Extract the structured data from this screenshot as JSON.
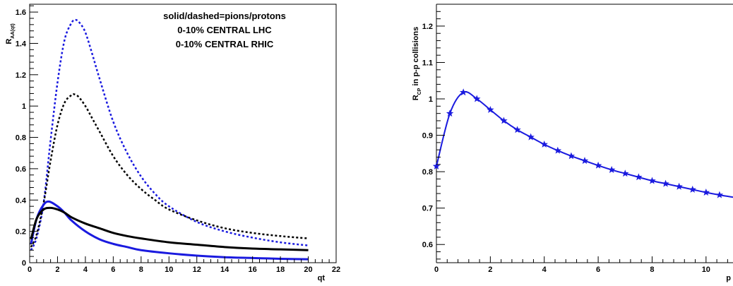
{
  "chart_data": [
    {
      "type": "line",
      "title": "",
      "xlabel": "qt",
      "ylabel": "R_{AA(qt)}",
      "xlim": [
        0,
        22
      ],
      "ylim": [
        0,
        1.65
      ],
      "grid": false,
      "xticks": [
        "0",
        "2",
        "4",
        "6",
        "8",
        "10",
        "12",
        "14",
        "16",
        "18",
        "20",
        "22"
      ],
      "yticks": [
        "0",
        "0.2",
        "0.4",
        "0.6",
        "0.8",
        "1",
        "1.2",
        "1.4",
        "1.6"
      ],
      "legend": {
        "placement": "top-right",
        "lines": [
          {
            "text": "solid/dashed=pions/protons",
            "color": "#000000"
          },
          {
            "text": "0-10% CENTRAL LHC",
            "color": "#1a1adf"
          },
          {
            "text": "0-10% CENTRAL RHIC",
            "color": "#000000"
          }
        ]
      },
      "series": [
        {
          "color": "#1a1adf",
          "style": "dashed",
          "x": [
            0.1,
            0.5,
            1,
            1.5,
            2,
            2.5,
            3,
            3.3,
            3.6,
            4,
            4.5,
            5,
            6,
            7,
            8,
            9,
            10,
            12,
            14,
            16,
            18,
            20
          ],
          "y": [
            0.08,
            0.16,
            0.38,
            0.78,
            1.15,
            1.42,
            1.53,
            1.55,
            1.53,
            1.47,
            1.33,
            1.18,
            0.9,
            0.7,
            0.55,
            0.44,
            0.36,
            0.26,
            0.2,
            0.16,
            0.13,
            0.11
          ]
        },
        {
          "color": "#000000",
          "style": "dashed",
          "x": [
            0.1,
            0.5,
            1,
            1.5,
            2,
            2.5,
            3,
            3.2,
            3.5,
            4,
            4.5,
            5,
            6,
            7,
            8,
            9,
            10,
            12,
            14,
            16,
            18,
            20
          ],
          "y": [
            0.1,
            0.18,
            0.38,
            0.65,
            0.88,
            1.02,
            1.07,
            1.075,
            1.06,
            1.0,
            0.92,
            0.84,
            0.68,
            0.56,
            0.47,
            0.4,
            0.34,
            0.27,
            0.22,
            0.19,
            0.17,
            0.155
          ]
        },
        {
          "color": "#1a1adf",
          "style": "solid",
          "x": [
            0.1,
            0.5,
            1,
            1.4,
            2,
            2.5,
            3,
            4,
            5,
            6,
            7,
            8,
            10,
            12,
            14,
            16,
            18,
            20
          ],
          "y": [
            0.12,
            0.28,
            0.37,
            0.39,
            0.36,
            0.32,
            0.27,
            0.2,
            0.15,
            0.12,
            0.1,
            0.08,
            0.06,
            0.045,
            0.035,
            0.03,
            0.025,
            0.022
          ]
        },
        {
          "color": "#000000",
          "style": "solid",
          "x": [
            0.1,
            0.5,
            1,
            1.5,
            2,
            2.5,
            3,
            4,
            5,
            6,
            7,
            8,
            10,
            12,
            14,
            16,
            18,
            20
          ],
          "y": [
            0.15,
            0.28,
            0.34,
            0.35,
            0.34,
            0.32,
            0.29,
            0.25,
            0.22,
            0.19,
            0.17,
            0.155,
            0.13,
            0.115,
            0.1,
            0.09,
            0.085,
            0.08
          ]
        }
      ]
    },
    {
      "type": "line",
      "title": "",
      "xlabel": "p",
      "ylabel": "R_{CP} in p-p collisions",
      "xlim": [
        0,
        11
      ],
      "ylim": [
        0.55,
        1.26
      ],
      "grid": false,
      "xticks": [
        "0",
        "2",
        "4",
        "6",
        "8",
        "10"
      ],
      "yticks": [
        "0.6",
        "0.7",
        "0.8",
        "0.9",
        "1",
        "1.1",
        "1.2"
      ],
      "series": [
        {
          "color": "#1a1adf",
          "style": "solid-with-star-markers",
          "x": [
            0,
            0.5,
            1,
            1.5,
            2,
            2.5,
            3,
            3.5,
            4,
            4.5,
            5,
            5.5,
            6,
            6.5,
            7,
            7.5,
            8,
            8.5,
            9,
            9.5,
            10,
            10.5,
            11
          ],
          "y": [
            0.815,
            0.96,
            1.018,
            1.0,
            0.97,
            0.94,
            0.915,
            0.895,
            0.875,
            0.858,
            0.843,
            0.83,
            0.817,
            0.805,
            0.795,
            0.785,
            0.775,
            0.767,
            0.759,
            0.751,
            0.743,
            0.736,
            0.73
          ]
        }
      ]
    }
  ]
}
